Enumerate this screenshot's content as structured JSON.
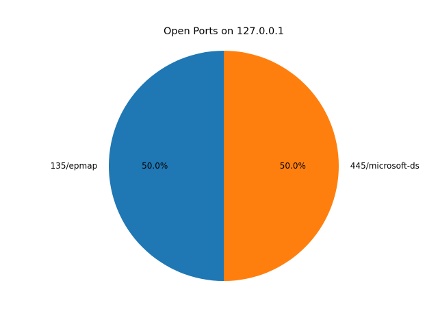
{
  "chart_data": {
    "type": "pie",
    "title": "Open Ports on 127.0.0.1",
    "slices": [
      {
        "label": "135/epmap",
        "value": 1,
        "pct_label": "50.0%",
        "color": "#1f77b4"
      },
      {
        "label": "445/microsoft-ds",
        "value": 1,
        "pct_label": "50.0%",
        "color": "#ff7f0e"
      }
    ],
    "start_angle_deg": 90,
    "direction": "counterclockwise",
    "legend": "none"
  }
}
